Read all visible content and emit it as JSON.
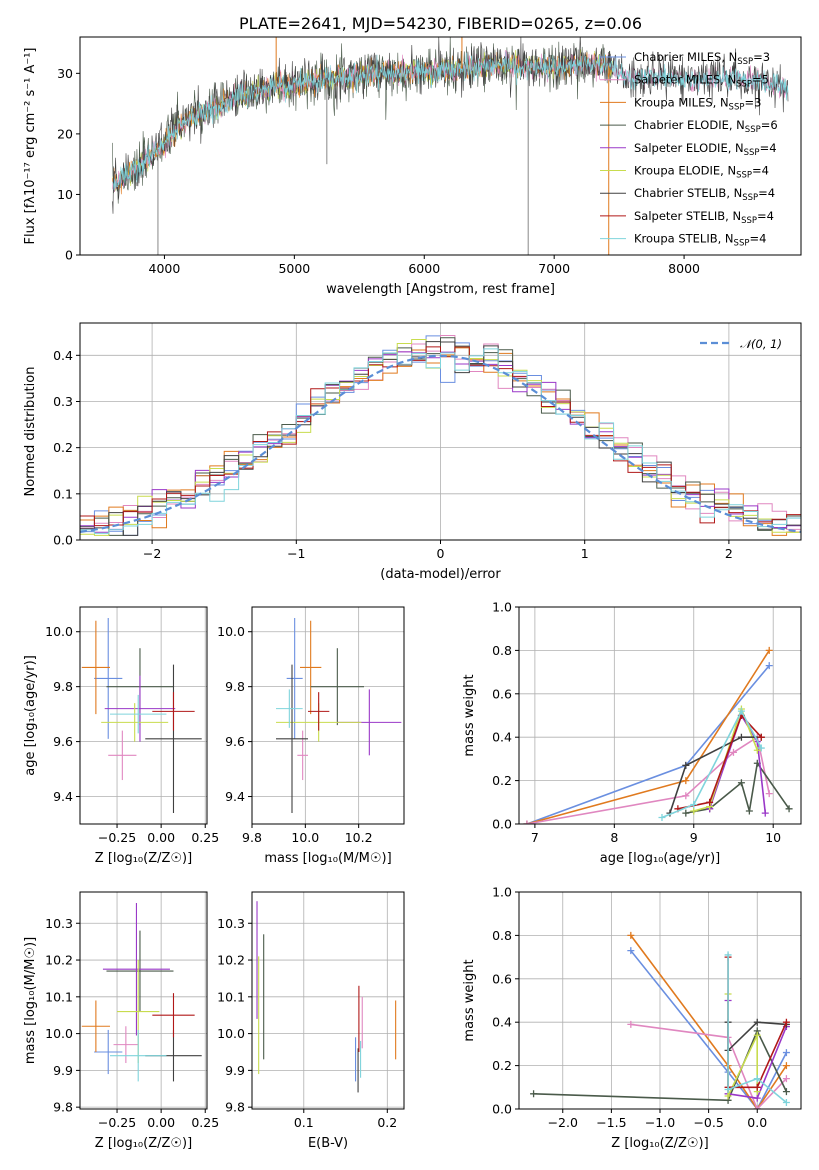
{
  "colors": {
    "chabrier_miles": "#6a8fe0",
    "salpeter_miles": "#e087c0",
    "kroupa_miles": "#e07a1f",
    "chabrier_elodie": "#4a5a4a",
    "salpeter_elodie": "#9a38c8",
    "kroupa_elodie": "#c8dc4e",
    "chabrier_stelib": "#404040",
    "salpeter_stelib": "#b01818",
    "kroupa_stelib": "#7fd4dc",
    "gaussian": "#5b8ed6"
  },
  "chart_data": [
    {
      "id": "spectrum",
      "type": "line",
      "title": "PLATE=2641, MJD=54230, FIBERID=0265, z=0.06",
      "xlabel": "wavelength [Angstrom, rest frame]",
      "ylabel": "Flux [fλ10⁻¹⁷ erg cm⁻² s⁻¹ A⁻¹]",
      "xlim": [
        3350,
        8900
      ],
      "ylim": [
        0,
        36
      ],
      "xticks": [
        "4000",
        "5000",
        "6000",
        "7000",
        "8000"
      ],
      "yticks": [
        "0",
        "10",
        "20",
        "30"
      ],
      "legend": [
        {
          "label": "Chabrier MILES, N",
          "sub": "SSP",
          "n": "=3",
          "color_key": "chabrier_miles"
        },
        {
          "label": "Salpeter MILES, N",
          "sub": "SSP",
          "n": "=5",
          "color_key": "salpeter_miles"
        },
        {
          "label": "Kroupa MILES, N",
          "sub": "SSP",
          "n": "=3",
          "color_key": "kroupa_miles"
        },
        {
          "label": "Chabrier ELODIE, N",
          "sub": "SSP",
          "n": "=6",
          "color_key": "chabrier_elodie"
        },
        {
          "label": "Salpeter ELODIE, N",
          "sub": "SSP",
          "n": "=4",
          "color_key": "salpeter_elodie"
        },
        {
          "label": "Kroupa ELODIE, N",
          "sub": "SSP",
          "n": "=4",
          "color_key": "kroupa_elodie"
        },
        {
          "label": "Chabrier STELIB, N",
          "sub": "SSP",
          "n": "=4",
          "color_key": "chabrier_stelib"
        },
        {
          "label": "Salpeter STELIB, N",
          "sub": "SSP",
          "n": "=4",
          "color_key": "salpeter_stelib"
        },
        {
          "label": "Kroupa STELIB, N",
          "sub": "SSP",
          "n": "=4",
          "color_key": "kroupa_stelib"
        }
      ],
      "continuum": {
        "x": [
          3600,
          3700,
          3800,
          3900,
          4000,
          4100,
          4200,
          4300,
          4400,
          4500,
          4600,
          4700,
          4800,
          4900,
          5000,
          5200,
          5400,
          5600,
          5800,
          6000,
          6200,
          6400,
          6600,
          6800,
          7000,
          7200,
          7400,
          7600,
          7800,
          8000,
          8200,
          8400,
          8600,
          8800
        ],
        "y": [
          11.5,
          13,
          14.5,
          16.5,
          18.5,
          21,
          22.5,
          23.5,
          24.5,
          25.5,
          26.5,
          27,
          27.5,
          28,
          28,
          29,
          29.5,
          30,
          30,
          30.5,
          30.5,
          31,
          31.5,
          31,
          31,
          31.5,
          31.5,
          29,
          29.5,
          29,
          29,
          29,
          28.5,
          27.5
        ]
      },
      "spikes": [
        {
          "x": 3950,
          "y": 0
        },
        {
          "x": 4860,
          "y": 37
        },
        {
          "x": 5250,
          "y": 15
        },
        {
          "x": 6290,
          "y": 37
        },
        {
          "x": 6800,
          "y": 0
        },
        {
          "x": 7420,
          "y": 0
        }
      ]
    },
    {
      "id": "residuals",
      "type": "histogram",
      "xlabel": "(data-model)/error",
      "ylabel": "Normed distribution",
      "xlim": [
        -2.5,
        2.5
      ],
      "ylim": [
        0,
        0.47
      ],
      "xticks": [
        "−2",
        "−1",
        "0",
        "1",
        "2"
      ],
      "yticks": [
        "0.0",
        "0.1",
        "0.2",
        "0.3",
        "0.4"
      ],
      "legend": "𝒩(0, 1)",
      "bin_width": 0.1,
      "bin_start": -2.5,
      "base_curve": "gaussian"
    },
    {
      "id": "z_vs_age",
      "type": "errorbar",
      "xlabel": "Z [log₁₀(Z/Z☉)]",
      "ylabel": "age  [log₁₀(age/yr)]",
      "xlim": [
        -0.46,
        0.26
      ],
      "ylim": [
        9.3,
        10.09
      ],
      "xticks": [
        "−0.25",
        "0.00",
        "0.25"
      ],
      "yticks": [
        "9.4",
        "9.6",
        "9.8",
        "10.0"
      ],
      "points": [
        {
          "color_key": "chabrier_miles",
          "x": -0.3,
          "xerr": 0.08,
          "y": 9.83,
          "yerr": 0.22
        },
        {
          "color_key": "kroupa_miles",
          "x": -0.37,
          "xerr": 0.08,
          "y": 9.87,
          "yerr": 0.17
        },
        {
          "color_key": "salpeter_miles",
          "x": -0.22,
          "xerr": 0.08,
          "y": 9.55,
          "yerr": 0.09
        },
        {
          "color_key": "chabrier_elodie",
          "x": -0.12,
          "xerr": 0.19,
          "y": 9.8,
          "yerr": 0.14
        },
        {
          "color_key": "salpeter_elodie",
          "x": -0.12,
          "xerr": 0.2,
          "y": 9.72,
          "yerr": 0.12
        },
        {
          "color_key": "kroupa_elodie",
          "x": -0.15,
          "xerr": 0.19,
          "y": 9.67,
          "yerr": 0.07
        },
        {
          "color_key": "chabrier_stelib",
          "x": 0.07,
          "xerr": 0.16,
          "y": 9.61,
          "yerr": 0.27
        },
        {
          "color_key": "salpeter_stelib",
          "x": 0.07,
          "xerr": 0.12,
          "y": 9.71,
          "yerr": 0.07
        },
        {
          "color_key": "kroupa_stelib",
          "x": -0.13,
          "xerr": 0.16,
          "y": 9.7,
          "yerr": 0.07
        }
      ]
    },
    {
      "id": "mass_vs_age",
      "type": "errorbar",
      "xlabel": "mass [log₁₀(M/M☉)]",
      "ylabel": "",
      "xlim": [
        9.8,
        10.37
      ],
      "ylim": [
        9.3,
        10.09
      ],
      "xticks": [
        "9.8",
        "10.0",
        "10.2"
      ],
      "yticks": [
        "9.4",
        "9.6",
        "9.8",
        "10.0"
      ],
      "points": [
        {
          "color_key": "chabrier_miles",
          "x": 9.96,
          "xerr": 0.03,
          "y": 9.83,
          "yerr": 0.22
        },
        {
          "color_key": "kroupa_miles",
          "x": 10.02,
          "xerr": 0.04,
          "y": 9.87,
          "yerr": 0.17
        },
        {
          "color_key": "salpeter_miles",
          "x": 9.99,
          "xerr": 0.02,
          "y": 9.55,
          "yerr": 0.09
        },
        {
          "color_key": "chabrier_elodie",
          "x": 10.12,
          "xerr": 0.1,
          "y": 9.8,
          "yerr": 0.14
        },
        {
          "color_key": "salpeter_elodie",
          "x": 10.24,
          "xerr": 0.12,
          "y": 9.67,
          "yerr": 0.12
        },
        {
          "color_key": "kroupa_elodie",
          "x": 10.05,
          "xerr": 0.16,
          "y": 9.67,
          "yerr": 0.07
        },
        {
          "color_key": "chabrier_stelib",
          "x": 9.95,
          "xerr": 0.06,
          "y": 9.61,
          "yerr": 0.27
        },
        {
          "color_key": "salpeter_stelib",
          "x": 10.05,
          "xerr": 0.04,
          "y": 9.71,
          "yerr": 0.07
        },
        {
          "color_key": "kroupa_stelib",
          "x": 9.94,
          "xerr": 0.05,
          "y": 9.72,
          "yerr": 0.07
        }
      ]
    },
    {
      "id": "age_vs_weight",
      "type": "line",
      "xlabel": "age  [log₁₀(age/yr)]",
      "ylabel": "mass weight",
      "xlim": [
        6.8,
        10.35
      ],
      "ylim": [
        0,
        1
      ],
      "xticks": [
        "7",
        "8",
        "9",
        "10"
      ],
      "yticks": [
        "0.0",
        "0.2",
        "0.4",
        "0.6",
        "0.8",
        "1.0"
      ],
      "series": [
        {
          "color_key": "chabrier_miles",
          "x": [
            6.9,
            8.9,
            9.95
          ],
          "y": [
            0.0,
            0.27,
            0.73
          ]
        },
        {
          "color_key": "kroupa_miles",
          "x": [
            6.9,
            8.9,
            9.95
          ],
          "y": [
            0.0,
            0.2,
            0.8
          ]
        },
        {
          "color_key": "salpeter_miles",
          "x": [
            6.9,
            8.9,
            9.5,
            9.8,
            9.95
          ],
          "y": [
            0.0,
            0.13,
            0.33,
            0.4,
            0.14
          ]
        },
        {
          "color_key": "chabrier_elodie",
          "x": [
            8.9,
            9.2,
            9.6,
            9.7,
            9.8,
            10.2
          ],
          "y": [
            0.05,
            0.07,
            0.19,
            0.06,
            0.28,
            0.07
          ]
        },
        {
          "color_key": "salpeter_elodie",
          "x": [
            9.2,
            9.6,
            9.8,
            9.9
          ],
          "y": [
            0.07,
            0.5,
            0.38,
            0.05
          ]
        },
        {
          "color_key": "kroupa_elodie",
          "x": [
            9.0,
            9.2,
            9.6,
            9.8
          ],
          "y": [
            0.06,
            0.08,
            0.53,
            0.34
          ]
        },
        {
          "color_key": "chabrier_stelib",
          "x": [
            8.7,
            8.9,
            9.6,
            9.85
          ],
          "y": [
            0.05,
            0.27,
            0.4,
            0.4
          ]
        },
        {
          "color_key": "salpeter_stelib",
          "x": [
            8.8,
            9.2,
            9.6,
            9.85
          ],
          "y": [
            0.07,
            0.1,
            0.5,
            0.4
          ]
        },
        {
          "color_key": "kroupa_stelib",
          "x": [
            8.6,
            9.0,
            9.6,
            9.85
          ],
          "y": [
            0.03,
            0.09,
            0.52,
            0.35
          ]
        }
      ]
    },
    {
      "id": "z_vs_mass",
      "type": "errorbar",
      "xlabel": "Z [log₁₀(Z/Z☉)]",
      "ylabel": "mass [log₁₀(M/M☉)]",
      "xlim": [
        -0.46,
        0.26
      ],
      "ylim": [
        9.795,
        10.385
      ],
      "xticks": [
        "−0.25",
        "0.00",
        "0.25"
      ],
      "yticks": [
        "9.8",
        "9.9",
        "10.0",
        "10.1",
        "10.2",
        "10.3"
      ],
      "points": [
        {
          "color_key": "chabrier_miles",
          "x": -0.3,
          "xerr": 0.08,
          "y": 9.95,
          "yerr": 0.06
        },
        {
          "color_key": "kroupa_miles",
          "x": -0.37,
          "xerr": 0.08,
          "y": 10.02,
          "yerr": 0.07
        },
        {
          "color_key": "salpeter_miles",
          "x": -0.2,
          "xerr": 0.07,
          "y": 9.97,
          "yerr": 0.05
        },
        {
          "color_key": "chabrier_elodie",
          "x": -0.12,
          "xerr": 0.19,
          "y": 10.17,
          "yerr": 0.11
        },
        {
          "color_key": "salpeter_elodie",
          "x": -0.14,
          "xerr": 0.19,
          "y": 10.175,
          "yerr": 0.18
        },
        {
          "color_key": "kroupa_elodie",
          "x": -0.13,
          "xerr": 0.12,
          "y": 10.06,
          "yerr": 0.14
        },
        {
          "color_key": "chabrier_stelib",
          "x": 0.07,
          "xerr": 0.16,
          "y": 9.94,
          "yerr": 0.07
        },
        {
          "color_key": "salpeter_stelib",
          "x": 0.07,
          "xerr": 0.12,
          "y": 10.05,
          "yerr": 0.06
        },
        {
          "color_key": "kroupa_stelib",
          "x": -0.13,
          "xerr": 0.16,
          "y": 9.94,
          "yerr": 0.07
        }
      ]
    },
    {
      "id": "ebv_vs_mass",
      "type": "errorbar",
      "xlabel": "E(B-V)",
      "ylabel": "",
      "xlim": [
        0.038,
        0.22
      ],
      "ylim": [
        9.795,
        10.385
      ],
      "xticks": [
        "0.1",
        "0.2"
      ],
      "yticks": [
        "9.8",
        "9.9",
        "10.0",
        "10.1",
        "10.2",
        "10.3"
      ],
      "points": [
        {
          "color_key": "chabrier_miles",
          "x": 0.162,
          "xerr": 0,
          "y": 9.93,
          "yerr": 0.06
        },
        {
          "color_key": "kroupa_miles",
          "x": 0.21,
          "xerr": 0,
          "y": 10.01,
          "yerr": 0.08
        },
        {
          "color_key": "salpeter_miles",
          "x": 0.17,
          "xerr": 0,
          "y": 10.03,
          "yerr": 0.07
        },
        {
          "color_key": "chabrier_elodie",
          "x": 0.052,
          "xerr": 0,
          "y": 10.1,
          "yerr": 0.17
        },
        {
          "color_key": "salpeter_elodie",
          "x": 0.044,
          "xerr": 0,
          "y": 10.2,
          "yerr": 0.16
        },
        {
          "color_key": "kroupa_elodie",
          "x": 0.046,
          "xerr": 0,
          "y": 10.05,
          "yerr": 0.16
        },
        {
          "color_key": "chabrier_stelib",
          "x": 0.165,
          "xerr": 0,
          "y": 9.9,
          "yerr": 0.06
        },
        {
          "color_key": "salpeter_stelib",
          "x": 0.166,
          "xerr": 0,
          "y": 10.04,
          "yerr": 0.09
        },
        {
          "color_key": "kroupa_stelib",
          "x": 0.168,
          "xerr": 0,
          "y": 9.93,
          "yerr": 0.05
        }
      ]
    },
    {
      "id": "z_vs_weight",
      "type": "line",
      "xlabel": "Z [log₁₀(Z/Z☉)]",
      "ylabel": "mass weight",
      "xlim": [
        -2.45,
        0.45
      ],
      "ylim": [
        0,
        1
      ],
      "xticks": [
        "−2.0",
        "−1.5",
        "−1.0",
        "−0.5",
        "0.0"
      ],
      "yticks": [
        "0.0",
        "0.2",
        "0.4",
        "0.6",
        "0.8",
        "1.0"
      ],
      "series": [
        {
          "color_key": "chabrier_miles",
          "x": [
            -1.3,
            -0.3,
            0.0,
            0.3
          ],
          "y": [
            0.73,
            0.17,
            0.0,
            0.26
          ]
        },
        {
          "color_key": "kroupa_miles",
          "x": [
            -1.3,
            -0.3,
            0.0,
            0.3
          ],
          "y": [
            0.8,
            0.2,
            0.0,
            0.2
          ]
        },
        {
          "color_key": "salpeter_miles",
          "x": [
            -1.3,
            -0.3,
            0.0,
            0.3
          ],
          "y": [
            0.39,
            0.33,
            0.0,
            0.14
          ]
        },
        {
          "color_key": "chabrier_elodie",
          "x": [
            -2.3,
            -0.3,
            0.0,
            0.3
          ],
          "y": [
            0.07,
            0.04,
            0.36,
            0.08
          ]
        },
        {
          "color_key": "salpeter_elodie",
          "x": [
            -0.3,
            -0.3,
            0.0,
            0.3
          ],
          "y": [
            0.5,
            0.07,
            0.05,
            0.38
          ]
        },
        {
          "color_key": "kroupa_elodie",
          "x": [
            -0.3,
            -0.3,
            0.0,
            0.0
          ],
          "y": [
            0.53,
            0.06,
            0.34,
            0.08
          ]
        },
        {
          "color_key": "chabrier_stelib",
          "x": [
            -0.3,
            -0.3,
            0.0,
            0.3
          ],
          "y": [
            0.4,
            0.27,
            0.4,
            0.39
          ]
        },
        {
          "color_key": "salpeter_stelib",
          "x": [
            -0.3,
            -0.3,
            0.0,
            0.3
          ],
          "y": [
            0.7,
            0.1,
            0.1,
            0.4
          ]
        },
        {
          "color_key": "kroupa_stelib",
          "x": [
            -0.3,
            -0.3,
            0.0,
            0.3
          ],
          "y": [
            0.71,
            0.09,
            0.14,
            0.03
          ]
        }
      ]
    }
  ]
}
